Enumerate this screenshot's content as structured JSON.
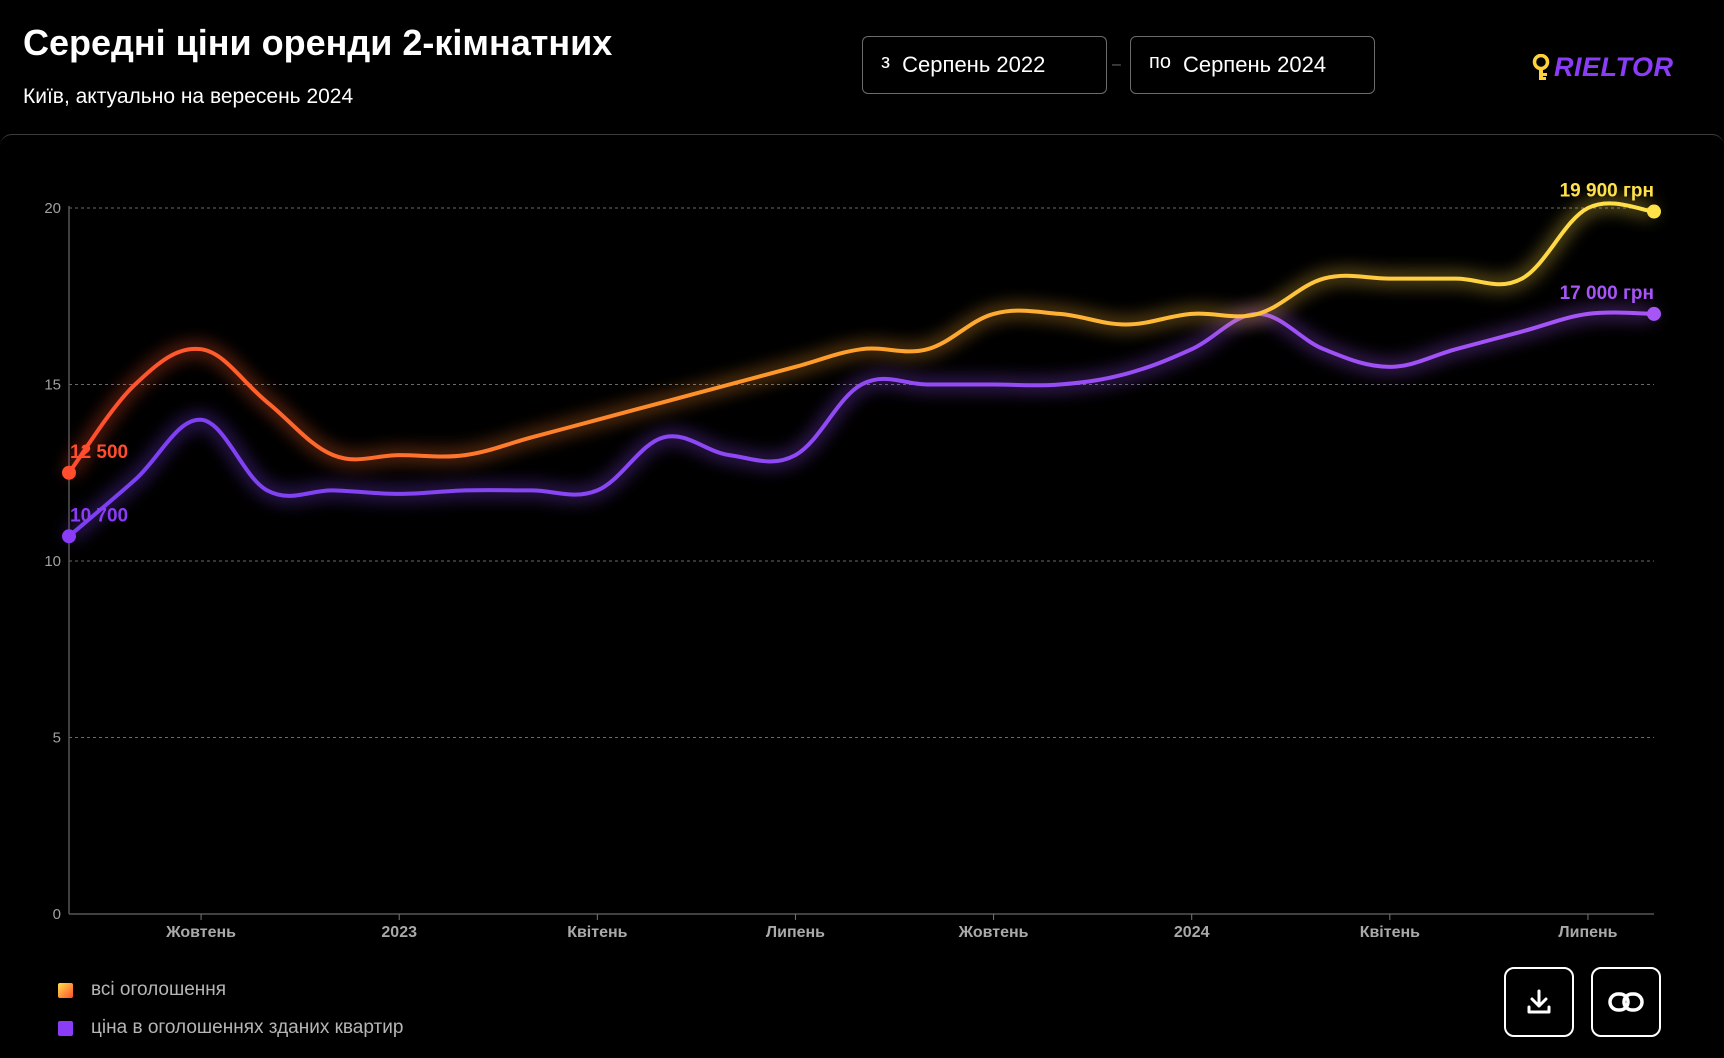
{
  "header": {
    "title": "Середні ціни оренди 2-кімнатних",
    "subtitle": "Київ, актуально на вересень 2024",
    "from_prefix": "з",
    "from_value": "Серпень 2022",
    "to_prefix": "по",
    "to_value": "Серпень 2024",
    "logo_text": "RIELTOR"
  },
  "legend": {
    "all_label": "всі оголошення",
    "rented_label": "ціна в оголошеннях зданих квартир"
  },
  "colors": {
    "all_start": "#ff4d2e",
    "all_end": "#ffe24a",
    "rented": "#8b3cf7",
    "rented_end": "#a855f7",
    "logo": "#8b3cf7"
  },
  "icons": {
    "download": "download-icon",
    "link": "link-icon",
    "logo": "key-icon"
  },
  "chart_data": {
    "type": "line",
    "x": [
      "2022-08",
      "2022-09",
      "2022-10",
      "2022-11",
      "2022-12",
      "2023-01",
      "2023-02",
      "2023-03",
      "2023-04",
      "2023-05",
      "2023-06",
      "2023-07",
      "2023-08",
      "2023-09",
      "2023-10",
      "2023-11",
      "2023-12",
      "2024-01",
      "2024-02",
      "2024-03",
      "2024-04",
      "2024-05",
      "2024-06",
      "2024-07",
      "2024-08"
    ],
    "xticks": [
      {
        "x": "2022-10",
        "label": "Жовтень"
      },
      {
        "x": "2023-01",
        "label": "2023"
      },
      {
        "x": "2023-04",
        "label": "Квітень"
      },
      {
        "x": "2023-07",
        "label": "Липень"
      },
      {
        "x": "2023-10",
        "label": "Жовтень"
      },
      {
        "x": "2024-01",
        "label": "2024"
      },
      {
        "x": "2024-04",
        "label": "Квітень"
      },
      {
        "x": "2024-07",
        "label": "Липень"
      }
    ],
    "yticks": [
      0,
      5,
      10,
      15,
      20
    ],
    "ylim": [
      0,
      20
    ],
    "grid": true,
    "series": [
      {
        "name": "всі оголошення",
        "values": [
          12.5,
          15.0,
          16.0,
          14.5,
          13.0,
          13.0,
          13.0,
          13.5,
          14.0,
          14.5,
          15.0,
          15.5,
          16.0,
          16.0,
          17.0,
          17.0,
          16.7,
          17.0,
          17.0,
          18.0,
          18.0,
          18.0,
          18.0,
          20.0,
          19.9
        ],
        "start_label": "12 500",
        "end_label": "19 900 грн"
      },
      {
        "name": "ціна в оголошеннях зданих квартир",
        "values": [
          10.7,
          12.3,
          14.0,
          12.0,
          12.0,
          11.9,
          12.0,
          12.0,
          12.0,
          13.5,
          13.0,
          13.0,
          15.0,
          15.0,
          15.0,
          15.0,
          15.3,
          16.0,
          17.0,
          16.0,
          15.5,
          16.0,
          16.5,
          17.0,
          17.0
        ],
        "start_label": "10 700",
        "end_label": "17 000 грн"
      }
    ]
  }
}
